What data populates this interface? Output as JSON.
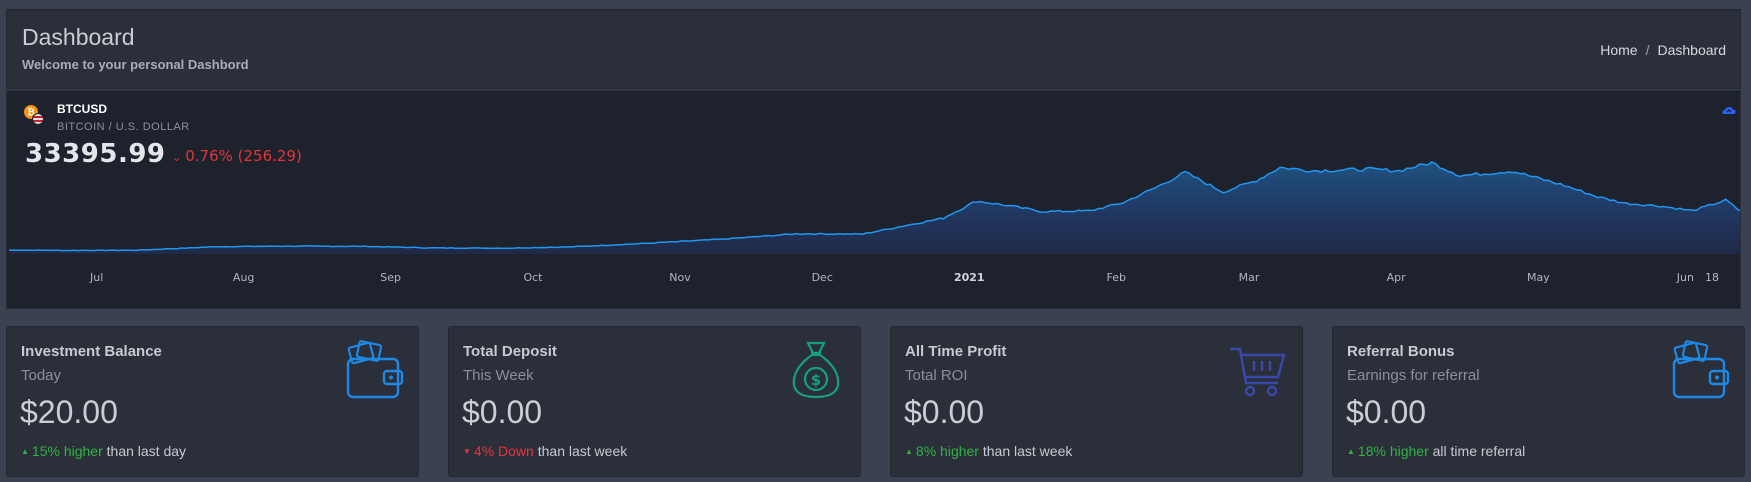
{
  "header": {
    "title": "Dashboard",
    "subtitle": "Welcome to your personal Dashbord",
    "breadcrumb": [
      "Home",
      "Dashboard"
    ],
    "breadcrumb_separator": "/"
  },
  "ticker": {
    "symbol": "BTCUSD",
    "description": "BITCOIN / U.S. DOLLAR",
    "coin_glyph": "₿",
    "price": "33395.99",
    "change": "0.76% (256.29)",
    "change_color": "#e0363a",
    "icons": [
      "bitcoin-icon",
      "us-flag-icon",
      "cloud-icon",
      "chevron-down-icon"
    ]
  },
  "chart_data": {
    "type": "area",
    "x_tick_labels": [
      "Jul",
      "Aug",
      "Sep",
      "Oct",
      "Nov",
      "Dec",
      "2021",
      "Feb",
      "Mar",
      "Apr",
      "May",
      "Jun",
      "18"
    ],
    "x": [
      "2020-06-18",
      "2020-07-01",
      "2020-07-15",
      "2020-08-01",
      "2020-08-15",
      "2020-09-01",
      "2020-09-15",
      "2020-10-01",
      "2020-10-15",
      "2020-11-01",
      "2020-11-15",
      "2020-12-01",
      "2020-12-15",
      "2021-01-01",
      "2021-01-08",
      "2021-01-15",
      "2021-01-22",
      "2021-02-01",
      "2021-02-08",
      "2021-02-15",
      "2021-02-21",
      "2021-03-01",
      "2021-03-08",
      "2021-03-13",
      "2021-03-20",
      "2021-04-01",
      "2021-04-07",
      "2021-04-14",
      "2021-04-20",
      "2021-05-01",
      "2021-05-12",
      "2021-05-19",
      "2021-05-25",
      "2021-06-01",
      "2021-06-08",
      "2021-06-15",
      "2021-06-18"
    ],
    "values": [
      9400,
      9200,
      9300,
      11500,
      11800,
      11700,
      10700,
      10600,
      11400,
      13800,
      16000,
      19400,
      19200,
      29000,
      39500,
      36500,
      33000,
      33500,
      38500,
      48000,
      57000,
      45000,
      52000,
      60000,
      58000,
      59000,
      58000,
      63000,
      55000,
      57800,
      49000,
      42000,
      38000,
      36500,
      33500,
      40000,
      33400
    ],
    "area_color": "#2962ff",
    "line_color": "#2196f3"
  },
  "cards": [
    {
      "title": "Investment Balance",
      "subtitle": "Today",
      "value": "$20.00",
      "trend": "15% higher",
      "trend_dir": "up",
      "suffix": " than last day",
      "icon": "wallet-icon",
      "icon_color": "#1e88e5"
    },
    {
      "title": "Total Deposit",
      "subtitle": "This Week",
      "value": "$0.00",
      "trend": "4% Down",
      "trend_dir": "down",
      "suffix": " than last week",
      "icon": "money-bag-icon",
      "icon_color": "#15a083"
    },
    {
      "title": "All Time Profit",
      "subtitle": "Total ROI",
      "value": "$0.00",
      "trend": "8% higher",
      "trend_dir": "up",
      "suffix": " than last week",
      "icon": "shopping-cart-icon",
      "icon_color": "#3949ab"
    },
    {
      "title": "Referral Bonus",
      "subtitle": "Earnings for referral",
      "value": "$0.00",
      "trend": "18% higher",
      "trend_dir": "up",
      "suffix": " all time referral",
      "icon": "wallet-icon",
      "icon_color": "#1e88e5"
    }
  ]
}
